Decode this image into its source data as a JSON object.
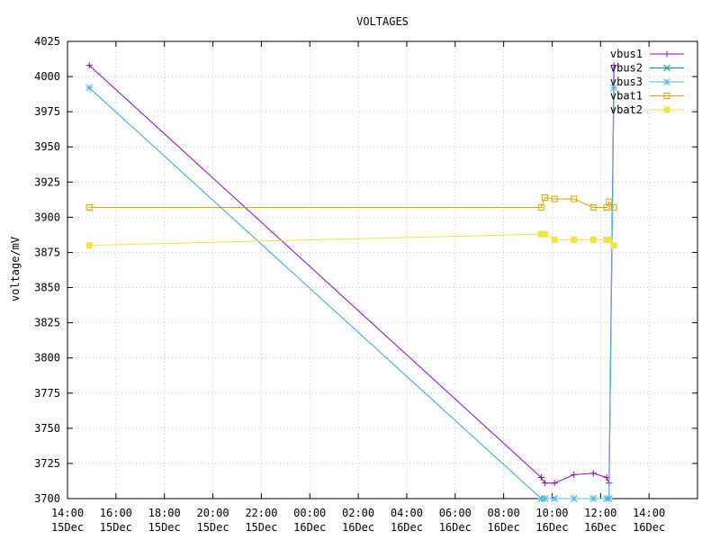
{
  "chart_data": {
    "type": "line",
    "title": "VOLTAGES",
    "xlabel": "",
    "ylabel": "voltage/mV",
    "ylim": [
      3700,
      4025
    ],
    "yticks": [
      3700,
      3725,
      3750,
      3775,
      3800,
      3825,
      3850,
      3875,
      3900,
      3925,
      3950,
      3975,
      4000,
      4025
    ],
    "xlim_hours": [
      14,
      40
    ],
    "xticks": [
      {
        "h": 14,
        "time": "14:00",
        "date": "15Dec"
      },
      {
        "h": 16,
        "time": "16:00",
        "date": "15Dec"
      },
      {
        "h": 18,
        "time": "18:00",
        "date": "15Dec"
      },
      {
        "h": 20,
        "time": "20:00",
        "date": "15Dec"
      },
      {
        "h": 22,
        "time": "22:00",
        "date": "15Dec"
      },
      {
        "h": 24,
        "time": "00:00",
        "date": "16Dec"
      },
      {
        "h": 26,
        "time": "02:00",
        "date": "16Dec"
      },
      {
        "h": 28,
        "time": "04:00",
        "date": "16Dec"
      },
      {
        "h": 30,
        "time": "06:00",
        "date": "16Dec"
      },
      {
        "h": 32,
        "time": "08:00",
        "date": "16Dec"
      },
      {
        "h": 34,
        "time": "10:00",
        "date": "16Dec"
      },
      {
        "h": 36,
        "time": "12:00",
        "date": "16Dec"
      },
      {
        "h": 38,
        "time": "14:00",
        "date": "16Dec"
      }
    ],
    "grid": true,
    "legend_position": "top-right",
    "series": [
      {
        "name": "vbus1",
        "color": "#9400d3",
        "marker": "plus",
        "points": [
          [
            14.9,
            4008
          ],
          [
            33.55,
            3715
          ],
          [
            33.7,
            3711
          ],
          [
            34.1,
            3711
          ],
          [
            34.9,
            3717
          ],
          [
            35.7,
            3718
          ],
          [
            36.25,
            3715
          ],
          [
            36.35,
            3711
          ],
          [
            36.55,
            4008
          ]
        ]
      },
      {
        "name": "vbus2",
        "color": "#009e73",
        "marker": "x",
        "points": [
          [
            14.9,
            3992
          ],
          [
            33.55,
            3700
          ],
          [
            33.7,
            3700
          ],
          [
            34.1,
            3700
          ],
          [
            34.9,
            3700
          ],
          [
            35.7,
            3700
          ],
          [
            36.25,
            3700
          ],
          [
            36.35,
            3700
          ],
          [
            36.55,
            3992
          ]
        ]
      },
      {
        "name": "vbus3",
        "color": "#56b4e9",
        "marker": "star",
        "points": [
          [
            14.9,
            3992
          ],
          [
            33.55,
            3700
          ],
          [
            33.7,
            3700
          ],
          [
            34.1,
            3700
          ],
          [
            34.9,
            3700
          ],
          [
            35.7,
            3700
          ],
          [
            36.25,
            3700
          ],
          [
            36.35,
            3700
          ],
          [
            36.55,
            3992
          ]
        ]
      },
      {
        "name": "vbat1",
        "color": "#e69f00",
        "marker": "square-open",
        "points": [
          [
            14.9,
            3907
          ],
          [
            33.55,
            3907
          ],
          [
            33.7,
            3914
          ],
          [
            34.1,
            3913
          ],
          [
            34.9,
            3913
          ],
          [
            35.7,
            3907
          ],
          [
            36.25,
            3907
          ],
          [
            36.35,
            3911
          ],
          [
            36.55,
            3907
          ]
        ]
      },
      {
        "name": "vbat2",
        "color": "#f0e442",
        "marker": "square-filled",
        "points": [
          [
            14.9,
            3880
          ],
          [
            33.55,
            3888
          ],
          [
            33.7,
            3888
          ],
          [
            34.1,
            3884
          ],
          [
            34.9,
            3884
          ],
          [
            35.7,
            3884
          ],
          [
            36.25,
            3884
          ],
          [
            36.35,
            3884
          ],
          [
            36.55,
            3880
          ]
        ]
      }
    ]
  }
}
